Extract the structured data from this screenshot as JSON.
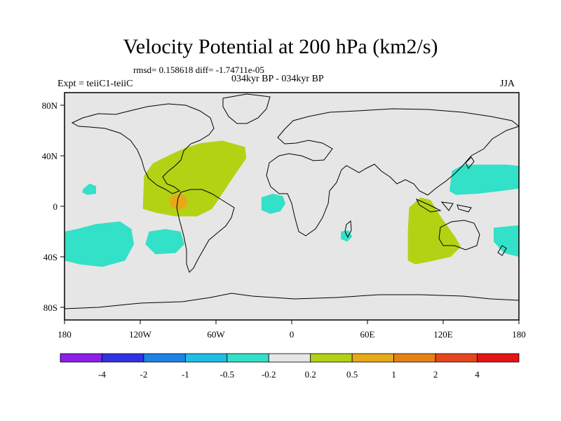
{
  "title": "Velocity Potential at 200 hPa (km2/s)",
  "stats": "rmsd= 0.158618 diff= -1.74711e-05",
  "subtitle": "034kyr BP - 034kyr BP",
  "expt": "Expt = teiiC1-teiiC",
  "season": "JJA",
  "colors": {
    "background": "#e6e6e6",
    "land_outline": "#000000",
    "neg_0p5": "#33e0c8",
    "pos_0p2": "#b4d214",
    "pos_0p5": "#e6aa19"
  },
  "chart_data": {
    "type": "heatmap",
    "projection": "cylindrical-equidistant",
    "lon_range": [
      -180,
      180
    ],
    "lat_range": [
      -90,
      90
    ],
    "x_ticks": [
      {
        "lon": -180,
        "label": "180"
      },
      {
        "lon": -120,
        "label": "120W"
      },
      {
        "lon": -60,
        "label": "60W"
      },
      {
        "lon": 0,
        "label": "0"
      },
      {
        "lon": 60,
        "label": "60E"
      },
      {
        "lon": 120,
        "label": "120E"
      },
      {
        "lon": 180,
        "label": "180"
      }
    ],
    "y_ticks": [
      {
        "lat": 80,
        "label": "80N"
      },
      {
        "lat": 40,
        "label": "40N"
      },
      {
        "lat": 0,
        "label": "0"
      },
      {
        "lat": -40,
        "label": "40S"
      },
      {
        "lat": -80,
        "label": "80S"
      }
    ],
    "colorbar": {
      "colors": [
        "#8c1eeb",
        "#3232e6",
        "#1e82e6",
        "#1ebee6",
        "#33e0c8",
        "#e6e6e6",
        "#b4d214",
        "#e6aa19",
        "#e68214",
        "#e6461e",
        "#e61414"
      ],
      "labels": [
        "-4",
        "-2",
        "-1",
        "-0.5",
        "-0.2",
        "0.2",
        "0.5",
        "1",
        "2",
        "4"
      ]
    },
    "regions": [
      {
        "name": "central-america-positive",
        "level": "0.2 to 0.5",
        "color": "#b4d214",
        "lonlat": [
          [
            -118,
            -2
          ],
          [
            -117,
            24
          ],
          [
            -110,
            34
          ],
          [
            -98,
            40
          ],
          [
            -85,
            46
          ],
          [
            -72,
            50
          ],
          [
            -55,
            52
          ],
          [
            -37,
            47
          ],
          [
            -36,
            38
          ],
          [
            -45,
            25
          ],
          [
            -55,
            10
          ],
          [
            -63,
            -2
          ],
          [
            -75,
            -8
          ],
          [
            -92,
            -8
          ],
          [
            -108,
            -5
          ]
        ]
      },
      {
        "name": "central-america-core",
        "level": "0.5 to 1",
        "color": "#e6aa19",
        "lonlat": [
          [
            -97,
            6
          ],
          [
            -92,
            10
          ],
          [
            -85,
            9
          ],
          [
            -82,
            4
          ],
          [
            -84,
            -1
          ],
          [
            -90,
            -3
          ],
          [
            -96,
            0
          ]
        ]
      },
      {
        "name": "indian-ocean-positive",
        "level": "0.2 to 0.5",
        "color": "#b4d214",
        "lonlat": [
          [
            93,
            -1
          ],
          [
            102,
            7
          ],
          [
            110,
            5
          ],
          [
            118,
            -8
          ],
          [
            130,
            -25
          ],
          [
            134,
            -32
          ],
          [
            126,
            -40
          ],
          [
            108,
            -44
          ],
          [
            98,
            -46
          ],
          [
            92,
            -43
          ],
          [
            92,
            -20
          ]
        ]
      },
      {
        "name": "east-pacific-negative",
        "level": "-0.5 to -0.2",
        "color": "#33e0c8",
        "lonlat": [
          [
            -180,
            -20
          ],
          [
            -170,
            -18
          ],
          [
            -155,
            -14
          ],
          [
            -136,
            -12
          ],
          [
            -127,
            -18
          ],
          [
            -125,
            -30
          ],
          [
            -132,
            -43
          ],
          [
            -150,
            -48
          ],
          [
            -168,
            -46
          ],
          [
            -180,
            -43
          ]
        ]
      },
      {
        "name": "south-pacific-negative",
        "level": "-0.5 to -0.2",
        "color": "#33e0c8",
        "lonlat": [
          [
            -113,
            -20
          ],
          [
            -100,
            -18
          ],
          [
            -88,
            -20
          ],
          [
            -85,
            -30
          ],
          [
            -92,
            -37
          ],
          [
            -108,
            -38
          ],
          [
            -116,
            -30
          ]
        ]
      },
      {
        "name": "north-pacific-small-negative",
        "level": "-0.5 to -0.2",
        "color": "#33e0c8",
        "lonlat": [
          [
            -165,
            14
          ],
          [
            -160,
            18
          ],
          [
            -155,
            16
          ],
          [
            -155,
            10
          ],
          [
            -162,
            9
          ],
          [
            -166,
            11
          ]
        ]
      },
      {
        "name": "atlantic-negative",
        "level": "-0.5 to -0.2",
        "color": "#33e0c8",
        "lonlat": [
          [
            -24,
            7
          ],
          [
            -15,
            10
          ],
          [
            -7,
            8
          ],
          [
            -5,
            2
          ],
          [
            -9,
            -4
          ],
          [
            -17,
            -6
          ],
          [
            -24,
            -3
          ]
        ]
      },
      {
        "name": "madagascar-negative",
        "level": "-0.5 to -0.2",
        "color": "#33e0c8",
        "lonlat": [
          [
            39,
            -20
          ],
          [
            45,
            -19
          ],
          [
            48,
            -24
          ],
          [
            44,
            -28
          ],
          [
            39,
            -26
          ]
        ]
      },
      {
        "name": "west-pacific-negative",
        "level": "-0.5 to -0.2",
        "color": "#33e0c8",
        "lonlat": [
          [
            125,
            12
          ],
          [
            127,
            28
          ],
          [
            136,
            33
          ],
          [
            150,
            33
          ],
          [
            170,
            33
          ],
          [
            180,
            32
          ],
          [
            180,
            14
          ],
          [
            165,
            12
          ],
          [
            148,
            10
          ],
          [
            130,
            9
          ]
        ]
      },
      {
        "name": "southwest-pacific-negative",
        "level": "-0.5 to -0.2",
        "color": "#33e0c8",
        "lonlat": [
          [
            160,
            -17
          ],
          [
            180,
            -15
          ],
          [
            180,
            -40
          ],
          [
            168,
            -37
          ],
          [
            160,
            -28
          ]
        ]
      }
    ]
  }
}
